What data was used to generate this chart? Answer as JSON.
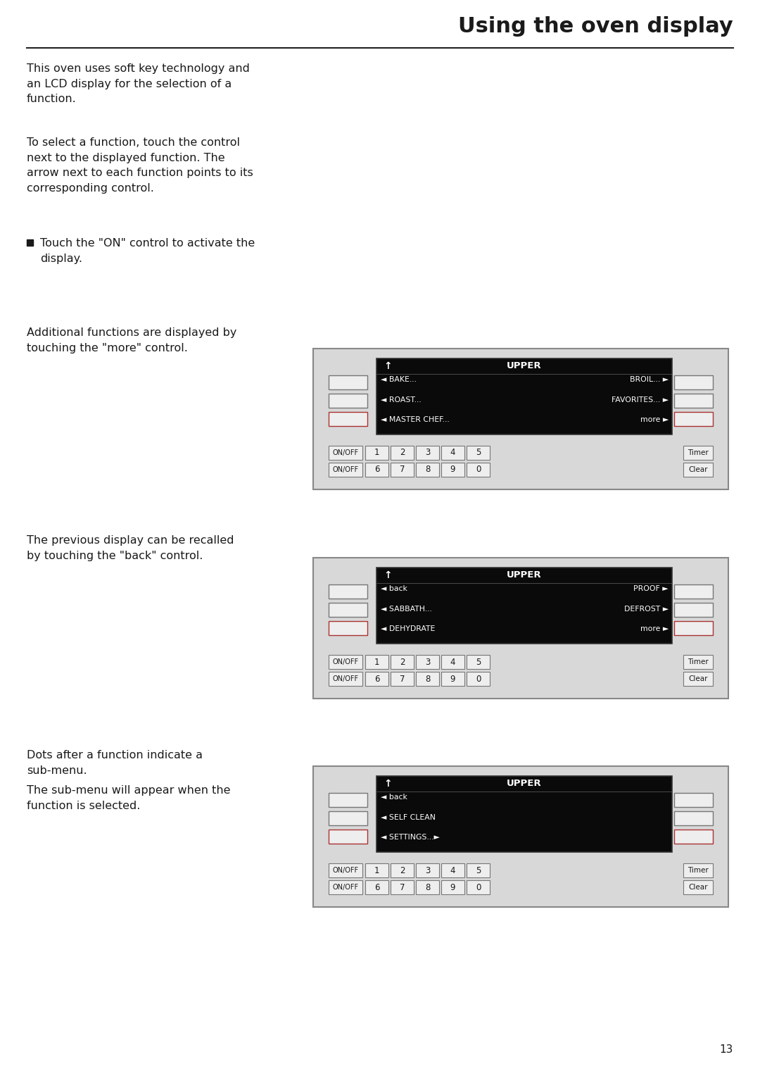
{
  "title": "Using the oven display",
  "bg_color": "#ffffff",
  "text_color": "#1a1a1a",
  "body_font_size": 11.5,
  "title_font_size": 22,
  "paragraphs": [
    "This oven uses soft key technology and\nan LCD display for the selection of a\nfunction.",
    "To select a function, touch the control\nnext to the displayed function. The\narrow next to each function points to its\ncorresponding control."
  ],
  "bullet": "Touch the \"ON\" control to activate the\ndisplay.",
  "section2_text": "Additional functions are displayed by\ntouching the \"more\" control.",
  "section3_text": "The previous display can be recalled\nby touching the \"back\" control.",
  "section4_text1": "Dots after a function indicate a\nsub-menu.",
  "section4_text2": "The sub-menu will appear when the\nfunction is selected.",
  "page_number": "13",
  "display1": {
    "title": "UPPER",
    "rows": [
      {
        "left": "◄ BAKE...",
        "right": "BROIL... ►"
      },
      {
        "left": "◄ ROAST...",
        "right": "FAVORITES... ►"
      },
      {
        "left": "◄ MASTER CHEF...",
        "right": "more ►"
      }
    ]
  },
  "display2": {
    "title": "UPPER",
    "rows": [
      {
        "left": "◄ back",
        "right": "PROOF ►"
      },
      {
        "left": "◄ SABBATH...",
        "right": "DEFROST ►"
      },
      {
        "left": "◄ DEHYDRATE",
        "right": "more ►"
      }
    ]
  },
  "display3": {
    "title": "UPPER",
    "rows": [
      {
        "left": "◄ back",
        "right": ""
      },
      {
        "left": "◄ SELF CLEAN",
        "right": ""
      },
      {
        "left": "◄ SETTINGS...►",
        "right": ""
      }
    ]
  },
  "panel_bg": "#d8d8d8",
  "screen_bg": "#0a0a0a",
  "screen_text": "#ffffff",
  "button_bg": "#eeeeee",
  "button_border": "#777777",
  "red_border": "#aa3333"
}
